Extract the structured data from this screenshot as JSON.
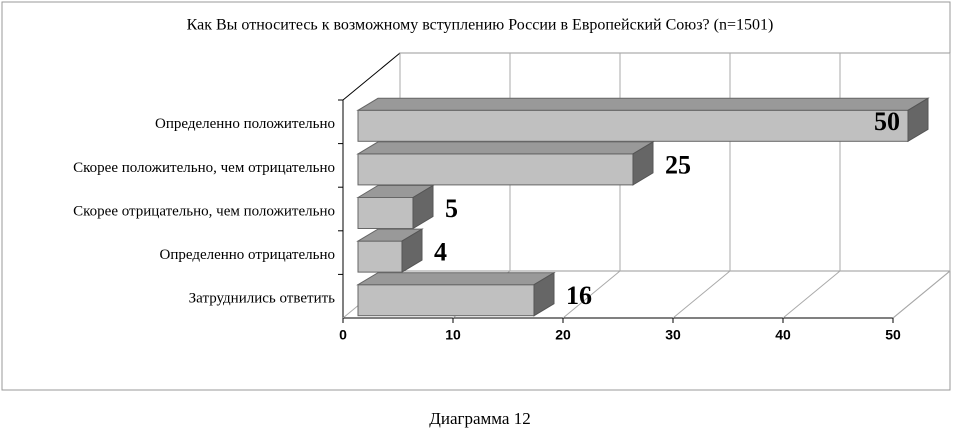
{
  "chart_data": {
    "type": "bar3d",
    "orientation": "horizontal",
    "title": "Как Вы относитесь к возможному вступлению России в Европейский Союз? (n=1501)",
    "categories": [
      "Определенно положительно",
      "Скорее положительно, чем отрицательно",
      "Скорее отрицательно, чем положительно",
      "Определенно отрицательно",
      "Затруднились ответить"
    ],
    "values": [
      50,
      25,
      5,
      4,
      16
    ],
    "color": "#c0c0c0",
    "xlim": [
      0,
      50
    ],
    "xticks": [
      0,
      10,
      20,
      30,
      40,
      50
    ],
    "grid": true
  },
  "caption": "Диаграмма 12"
}
